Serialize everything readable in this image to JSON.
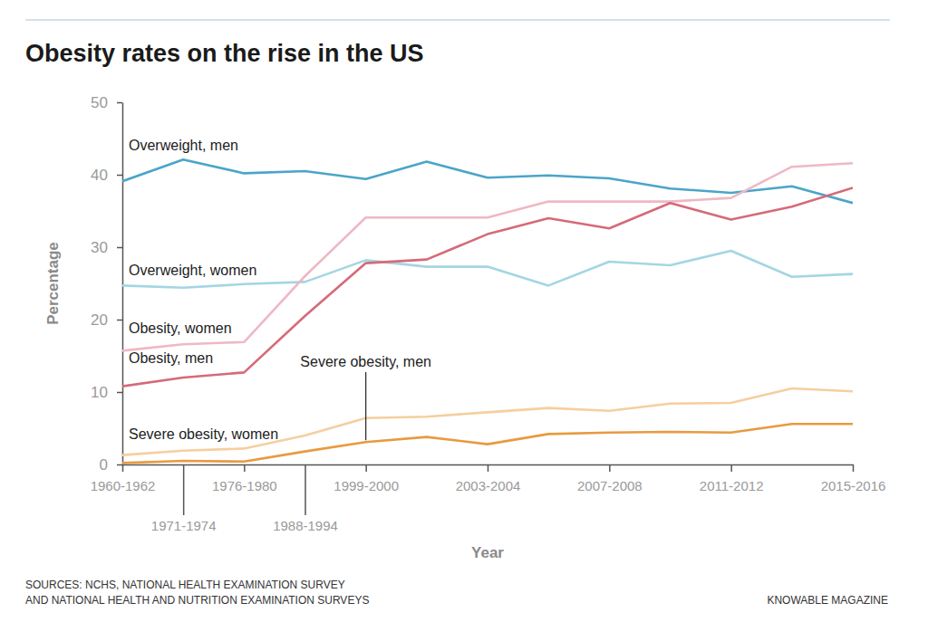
{
  "chart_data": {
    "type": "line",
    "title": "Obesity rates on the rise in the US",
    "x_label": "Year",
    "y_label": "Percentage",
    "categories": [
      "1960-1962",
      "1971-1974",
      "1976-1980",
      "1988-1994",
      "1999-2000",
      null,
      "2003-2004",
      null,
      "2007-2008",
      null,
      "2011-2012",
      null,
      "2015-2016"
    ],
    "ylim": [
      0,
      50
    ],
    "yticks": [
      0,
      10,
      20,
      30,
      40,
      50
    ],
    "grid": false,
    "series": [
      {
        "name": "Overweight, men",
        "color": "#4aa5c9",
        "values": [
          39.1,
          42.1,
          40.2,
          40.5,
          39.4,
          41.8,
          39.6,
          39.9,
          39.5,
          38.1,
          37.5,
          38.4,
          36.1
        ]
      },
      {
        "name": "Overweight, women",
        "color": "#a3d6e2",
        "values": [
          24.7,
          24.4,
          24.9,
          25.2,
          28.2,
          27.3,
          27.3,
          24.7,
          28.0,
          27.5,
          29.5,
          25.9,
          26.3
        ]
      },
      {
        "name": "Obesity, women",
        "color": "#efb8c4",
        "values": [
          15.7,
          16.6,
          16.9,
          26.0,
          34.1,
          34.1,
          34.1,
          36.3,
          36.3,
          36.3,
          36.8,
          41.1,
          41.6
        ]
      },
      {
        "name": "Obesity, men",
        "color": "#d56a79",
        "values": [
          10.8,
          12.0,
          12.7,
          20.5,
          27.8,
          28.3,
          31.8,
          34.0,
          32.6,
          36.1,
          33.8,
          35.6,
          38.2
        ]
      },
      {
        "name": "Severe obesity, men",
        "color": "#e89a40",
        "values": [
          0.2,
          0.5,
          0.4,
          1.8,
          3.1,
          3.8,
          2.8,
          4.2,
          4.4,
          4.5,
          4.4,
          5.6,
          5.6
        ]
      },
      {
        "name": "Severe obesity, women",
        "color": "#f5cf9f",
        "values": [
          1.3,
          1.9,
          2.2,
          4.0,
          6.4,
          6.6,
          7.2,
          7.8,
          7.4,
          8.4,
          8.5,
          10.5,
          10.1
        ]
      }
    ],
    "source": [
      "SOURCES: NCHS, NATIONAL HEALTH EXAMINATION SURVEY",
      "AND NATIONAL HEALTH AND NUTRITION EXAMINATION SURVEYS"
    ],
    "credit": "KNOWABLE MAGAZINE"
  }
}
